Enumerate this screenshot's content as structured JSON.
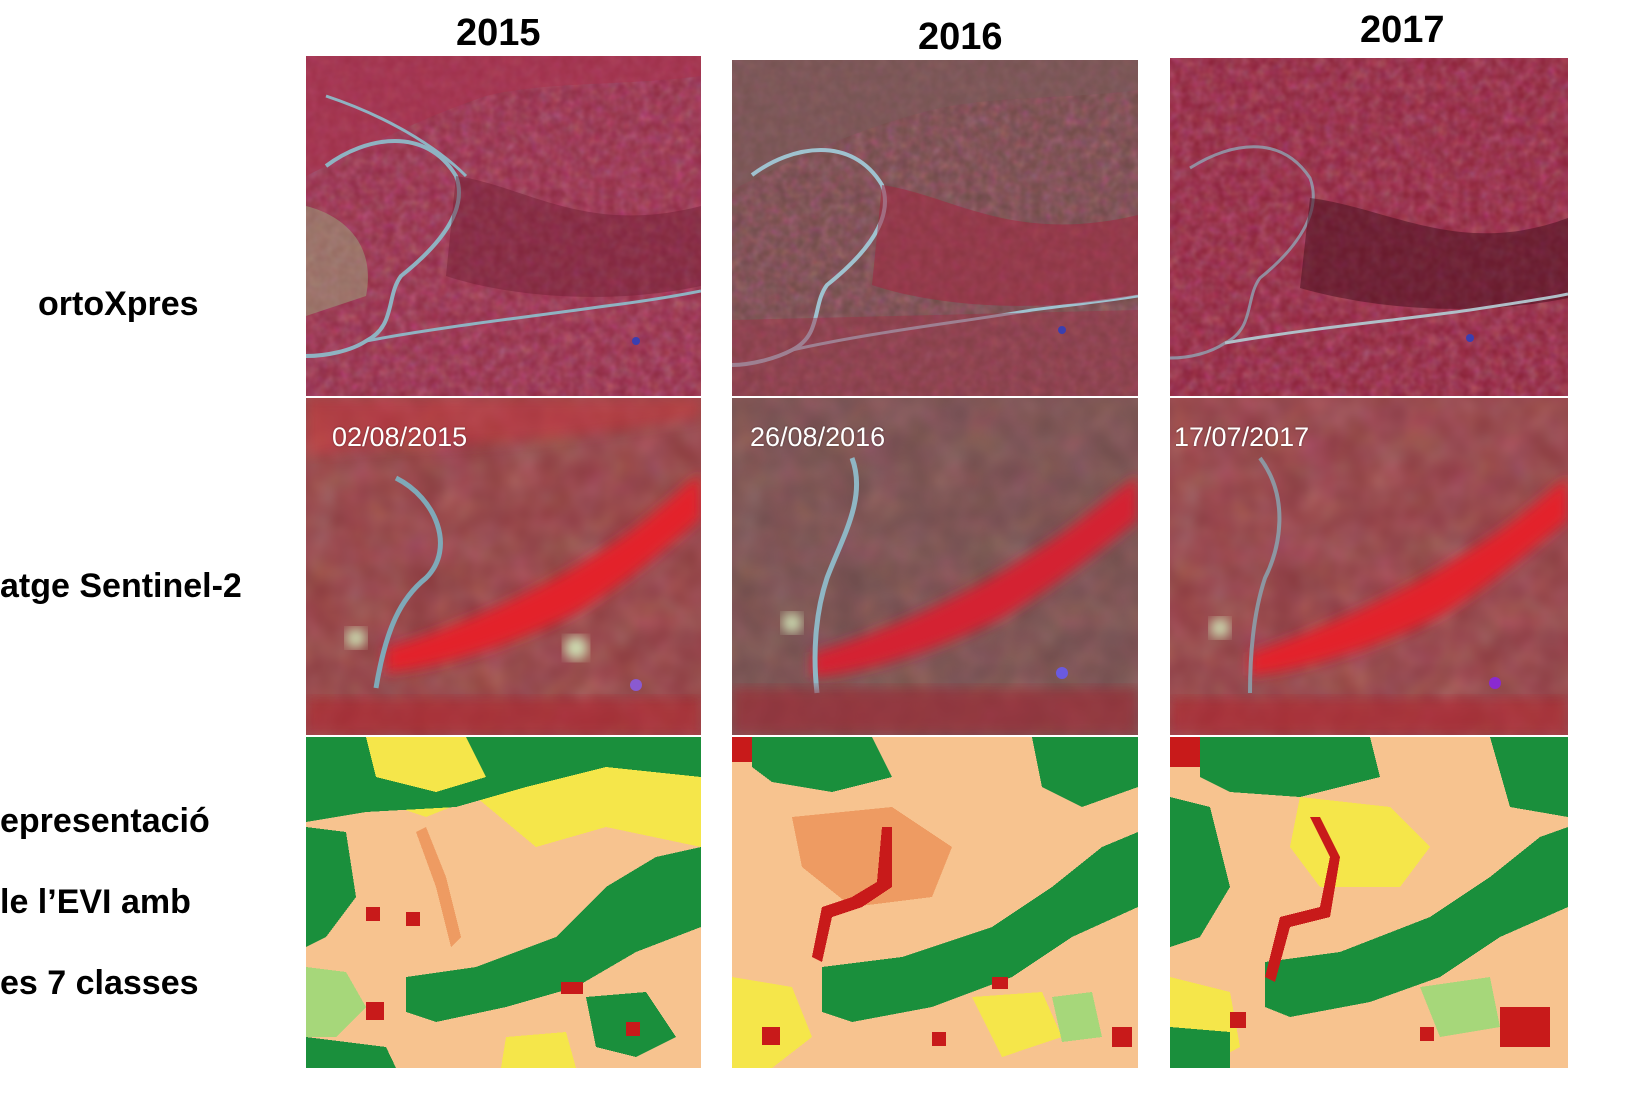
{
  "years": [
    "2015",
    "2016",
    "2017"
  ],
  "row_labels": {
    "ortho": "ortoXpres",
    "sentinel": "atge Sentinel-2",
    "evi_line1": "epresentació",
    "evi_line2": "le l’EVI amb",
    "evi_line3": "es 7 classes"
  },
  "sentinel_dates": [
    "02/08/2015",
    "26/08/2016",
    "17/07/2017"
  ],
  "colors": {
    "evi_dark_green": "#1a8f3c",
    "evi_light_green": "#a6d77a",
    "evi_yellow": "#f5e64a",
    "evi_light_orange": "#f7c38f",
    "evi_orange": "#ee9b62",
    "evi_red": "#c81a1a",
    "ortho_red": "#9a2a45",
    "sentinel_red": "#e3202c"
  }
}
